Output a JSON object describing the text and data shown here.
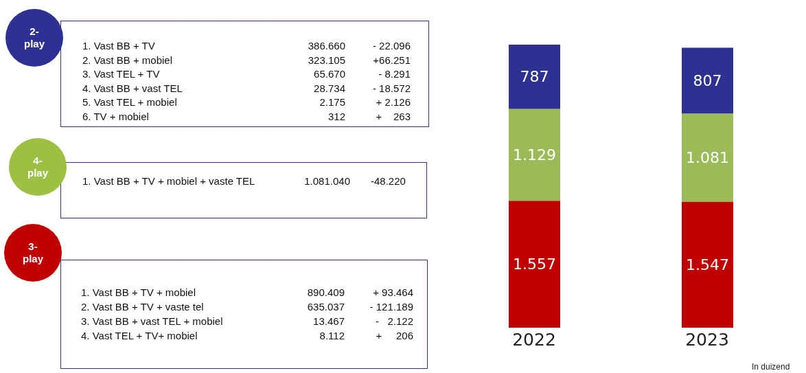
{
  "chart_data": [
    {
      "type": "other",
      "title": "2-play",
      "color": "#2e3192",
      "annotations": [
        "1. Vast BB + TV",
        "386.660",
        "- 22.096",
        "2. Vast BB + mobiel",
        "323.105",
        "+66.251",
        "3. Vast TEL + TV",
        "65.670",
        "- 8.291",
        "4. Vast BB + vast TEL",
        "28.734",
        "- 18.572",
        "5. Vast TEL + mobiel",
        "2.175",
        "+ 2.126",
        "6. TV + mobiel",
        "312",
        "+    263"
      ]
    },
    {
      "type": "other",
      "title": "4-play",
      "color": "#9dc044",
      "annotations": [
        "1. Vast BB + TV + mobiel + vaste TEL",
        "1.081.040",
        "-48.220"
      ]
    },
    {
      "type": "other",
      "title": "3-play",
      "color": "#c00000",
      "annotations": [
        "1. Vast BB + TV + mobiel",
        "890.409",
        "+ 93.464",
        "2. Vast BB + TV + vaste tel",
        "635.037",
        "- 121.189",
        "3. Vast BB + vast TEL + mobiel",
        "13.467",
        "-   2.122",
        "4. Vast TEL + TV+ mobiel",
        "8.112",
        "+     206"
      ]
    },
    {
      "type": "bar",
      "stacked": true,
      "categories": [
        "2022",
        "2023"
      ],
      "annotations": [
        "In duizend"
      ],
      "series": [
        {
          "color": "#c00000",
          "values": [
            1557,
            1547
          ],
          "value_labels": [
            "1.557",
            "1.547"
          ]
        },
        {
          "color": "#9bbb59",
          "values": [
            1129,
            1081
          ],
          "value_labels": [
            "1.129",
            "1.081"
          ]
        },
        {
          "color": "#2e3192",
          "values": [
            787,
            807
          ],
          "value_labels": [
            "787",
            "807"
          ]
        }
      ]
    }
  ]
}
